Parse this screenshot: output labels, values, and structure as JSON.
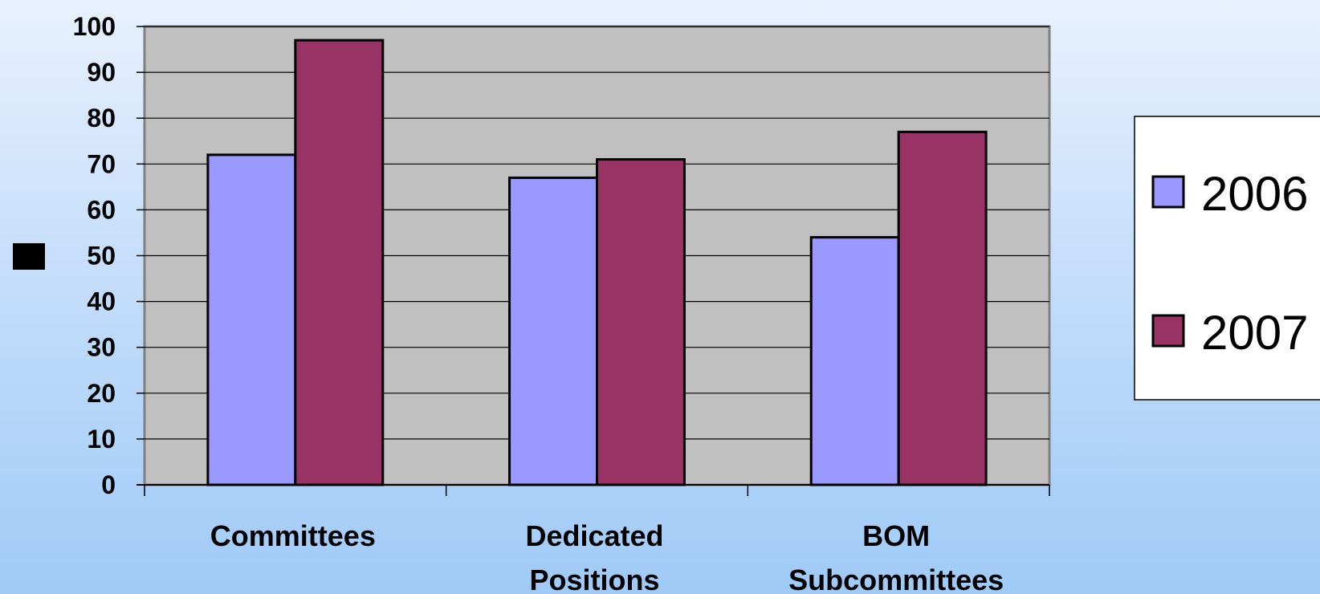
{
  "chart_data": {
    "type": "bar",
    "title": "",
    "xlabel": "",
    "ylabel": "",
    "categories": [
      [
        "Committees"
      ],
      [
        "Dedicated",
        "Positions"
      ],
      [
        "BOM",
        "Subcommittees"
      ]
    ],
    "series": [
      {
        "name": "2006",
        "values": [
          72,
          67,
          54
        ],
        "color": "#9999ff"
      },
      {
        "name": "2007",
        "values": [
          97,
          71,
          77
        ],
        "color": "#993366"
      }
    ],
    "ylim": [
      0,
      100
    ],
    "yticks": [
      0,
      10,
      20,
      30,
      40,
      50,
      60,
      70,
      80,
      90,
      100
    ],
    "grid": true,
    "plot_background": "#c0c0c0",
    "legend_position": "right"
  }
}
